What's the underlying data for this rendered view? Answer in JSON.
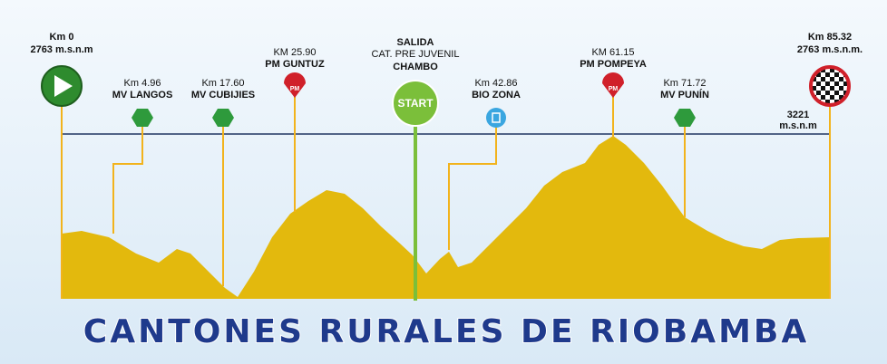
{
  "start": {
    "km": "Km 0",
    "altitude": "2763 m.s.n.m"
  },
  "finish": {
    "km": "Km 85.32",
    "altitude": "2763 m.s.n.m."
  },
  "max_line": {
    "value": "3221",
    "unit": "m.s.n.m"
  },
  "departure": {
    "title": "SALIDA",
    "category": "CAT. PRE JUVENIL",
    "place": "CHAMBO",
    "badge": "START"
  },
  "markers": [
    {
      "km": "Km 4.96",
      "name": "MV LANGOS"
    },
    {
      "km": "Km 17.60",
      "name": "MV CUBIJIES"
    },
    {
      "km": "KM 25.90",
      "name": "PM GUNTUZ",
      "icon": "PM"
    },
    {
      "km": "Km 42.86",
      "name": "BIO ZONA"
    },
    {
      "km": "KM 61.15",
      "name": "PM POMPEYA",
      "icon": "PM"
    },
    {
      "km": "Km 71.72",
      "name": "MV PUNÍN"
    }
  ],
  "footer": "CANTONES RURALES DE RIOBAMBA"
}
